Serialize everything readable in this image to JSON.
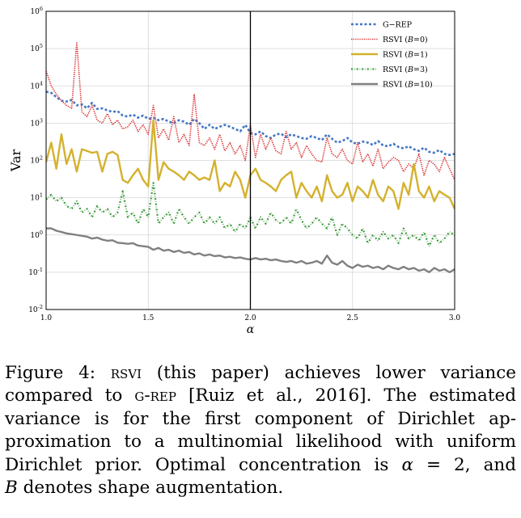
{
  "chart_data": {
    "type": "line",
    "title": "",
    "xlabel": "α",
    "ylabel": "Var",
    "xlim": [
      1.0,
      3.0
    ],
    "ylim_log10": [
      -2,
      6
    ],
    "y_scale": "log",
    "grid": true,
    "legend_position": "top-right",
    "vline_x": 2.0,
    "x_ticks": [
      "1.0",
      "1.5",
      "2.0",
      "2.5",
      "3.0"
    ],
    "y_ticks": [
      {
        "base": "10",
        "exp": "-2"
      },
      {
        "base": "10",
        "exp": "-1"
      },
      {
        "base": "10",
        "exp": "0"
      },
      {
        "base": "10",
        "exp": "1"
      },
      {
        "base": "10",
        "exp": "2"
      },
      {
        "base": "10",
        "exp": "3"
      },
      {
        "base": "10",
        "exp": "4"
      },
      {
        "base": "10",
        "exp": "5"
      },
      {
        "base": "10",
        "exp": "6"
      }
    ],
    "x": [
      1.0,
      1.025,
      1.05,
      1.075,
      1.1,
      1.125,
      1.15,
      1.175,
      1.2,
      1.225,
      1.25,
      1.275,
      1.3,
      1.325,
      1.35,
      1.375,
      1.4,
      1.425,
      1.45,
      1.475,
      1.5,
      1.525,
      1.55,
      1.575,
      1.6,
      1.625,
      1.65,
      1.675,
      1.7,
      1.725,
      1.75,
      1.775,
      1.8,
      1.825,
      1.85,
      1.875,
      1.9,
      1.925,
      1.95,
      1.975,
      2.0,
      2.025,
      2.05,
      2.075,
      2.1,
      2.125,
      2.15,
      2.175,
      2.2,
      2.225,
      2.25,
      2.275,
      2.3,
      2.325,
      2.35,
      2.375,
      2.4,
      2.425,
      2.45,
      2.475,
      2.5,
      2.525,
      2.55,
      2.575,
      2.6,
      2.625,
      2.65,
      2.675,
      2.7,
      2.725,
      2.75,
      2.775,
      2.8,
      2.825,
      2.85,
      2.875,
      2.9,
      2.925,
      2.95,
      2.975,
      3.0
    ],
    "series": [
      {
        "name": "G−REP",
        "color": "#4477c4",
        "dash": "3,2.5",
        "width": 2.6,
        "values": [
          7000,
          6500,
          5000,
          4000,
          3800,
          4200,
          3000,
          3200,
          2500,
          3500,
          2400,
          2500,
          2200,
          2000,
          2100,
          1600,
          1500,
          1700,
          1400,
          1600,
          1300,
          1400,
          1200,
          1300,
          1100,
          1000,
          1200,
          1100,
          900,
          1300,
          1000,
          700,
          900,
          700,
          800,
          900,
          800,
          700,
          600,
          900,
          550,
          500,
          600,
          450,
          400,
          500,
          520,
          420,
          500,
          450,
          400,
          380,
          450,
          400,
          350,
          500,
          380,
          300,
          330,
          400,
          300,
          280,
          320,
          300,
          260,
          330,
          250,
          240,
          280,
          230,
          210,
          240,
          200,
          180,
          220,
          170,
          160,
          190,
          150,
          140,
          150
        ]
      },
      {
        "name": "RSVI (B=0)",
        "color": "#dd3c3c",
        "dash": "1.4,1.2",
        "width": 1.6,
        "values": [
          25000,
          10000,
          6000,
          4000,
          3000,
          2500,
          150000,
          2000,
          1500,
          3000,
          1200,
          1000,
          1800,
          900,
          1200,
          700,
          800,
          1200,
          600,
          900,
          500,
          3000,
          400,
          700,
          350,
          1500,
          300,
          500,
          250,
          6000,
          300,
          250,
          400,
          200,
          500,
          180,
          300,
          150,
          250,
          100,
          900,
          120,
          500,
          200,
          400,
          180,
          150,
          600,
          200,
          300,
          120,
          250,
          150,
          100,
          90,
          400,
          150,
          120,
          200,
          100,
          80,
          300,
          90,
          150,
          70,
          200,
          60,
          90,
          120,
          100,
          50,
          80,
          60,
          150,
          40,
          100,
          80,
          50,
          120,
          60,
          30
        ]
      },
      {
        "name": "RSVI (B=1)",
        "color": "#d4b12e",
        "dash": "",
        "width": 2.4,
        "values": [
          90,
          300,
          60,
          500,
          80,
          200,
          50,
          200,
          180,
          160,
          170,
          50,
          150,
          170,
          140,
          30,
          25,
          40,
          60,
          30,
          20,
          1200,
          30,
          90,
          60,
          50,
          40,
          30,
          50,
          40,
          30,
          35,
          30,
          100,
          15,
          25,
          20,
          50,
          30,
          10,
          40,
          60,
          30,
          25,
          20,
          15,
          30,
          40,
          50,
          10,
          25,
          15,
          10,
          20,
          8,
          40,
          15,
          10,
          12,
          25,
          8,
          20,
          15,
          10,
          30,
          12,
          8,
          20,
          15,
          5,
          25,
          12,
          80,
          15,
          10,
          20,
          8,
          15,
          12,
          10,
          5
        ]
      },
      {
        "name": "RSVI (B=3)",
        "color": "#3d9a3d",
        "dash": "2,2,0.6,2",
        "width": 2.2,
        "values": [
          9,
          12,
          8,
          10,
          6,
          5,
          8,
          4,
          5,
          3,
          6,
          4,
          5,
          3,
          4,
          15,
          3,
          4,
          2,
          5,
          3,
          25,
          2,
          3,
          4,
          2,
          5,
          3,
          2,
          3,
          4,
          2,
          3,
          2,
          3,
          1.5,
          2,
          1.2,
          2,
          1.5,
          3,
          1.5,
          3,
          2,
          4,
          2.5,
          2,
          3,
          2,
          5,
          2.5,
          1.5,
          2,
          3,
          2,
          1.5,
          3,
          1,
          2,
          1.5,
          1,
          0.8,
          1.5,
          0.6,
          1,
          0.7,
          1.2,
          0.8,
          1,
          0.6,
          1.5,
          0.8,
          1,
          0.7,
          1.2,
          0.5,
          1,
          0.6,
          0.8,
          1.2,
          1
        ]
      },
      {
        "name": "RSVI (B=10)",
        "color": "#808080",
        "dash": "",
        "width": 2.4,
        "values": [
          1.5,
          1.5,
          1.3,
          1.2,
          1.1,
          1.05,
          1.0,
          0.95,
          0.9,
          0.8,
          0.85,
          0.75,
          0.7,
          0.72,
          0.62,
          0.6,
          0.58,
          0.6,
          0.52,
          0.5,
          0.48,
          0.4,
          0.45,
          0.38,
          0.4,
          0.35,
          0.38,
          0.33,
          0.35,
          0.3,
          0.32,
          0.28,
          0.3,
          0.27,
          0.28,
          0.25,
          0.26,
          0.24,
          0.25,
          0.23,
          0.22,
          0.24,
          0.22,
          0.23,
          0.21,
          0.22,
          0.2,
          0.19,
          0.2,
          0.18,
          0.2,
          0.17,
          0.18,
          0.2,
          0.17,
          0.28,
          0.18,
          0.16,
          0.2,
          0.15,
          0.13,
          0.16,
          0.14,
          0.15,
          0.13,
          0.14,
          0.12,
          0.15,
          0.13,
          0.12,
          0.14,
          0.12,
          0.13,
          0.11,
          0.12,
          0.1,
          0.13,
          0.11,
          0.12,
          0.1,
          0.12
        ]
      }
    ],
    "legend": [
      {
        "label": "G−REP",
        "italic_part": "",
        "suffix": ""
      },
      {
        "label": "RSVI (",
        "italic_part": "B",
        "suffix": "=0)"
      },
      {
        "label": "RSVI (",
        "italic_part": "B",
        "suffix": "=1)"
      },
      {
        "label": "RSVI (",
        "italic_part": "B",
        "suffix": "=3)"
      },
      {
        "label": "RSVI (",
        "italic_part": "B",
        "suffix": "=10)"
      }
    ]
  },
  "caption": {
    "figure_label": "Figure 4:",
    "lines": [
      [
        "Figure 4:  ",
        {
          "sc": "rsvi"
        },
        " (this paper) achieves lower variance"
      ],
      [
        "compared to ",
        {
          "sc": "g-rep"
        },
        " [Ruiz et al., 2016].  The estimated"
      ],
      [
        "variance is for the first component of Dirichlet ap-"
      ],
      [
        "proximation to a multinomial likelihood with uniform"
      ],
      [
        "Dirichlet prior.  Optimal concentration is ",
        {
          "it": "α"
        },
        " = 2, and"
      ],
      [
        {
          "it": "B"
        },
        " denotes shape augmentation."
      ]
    ]
  }
}
